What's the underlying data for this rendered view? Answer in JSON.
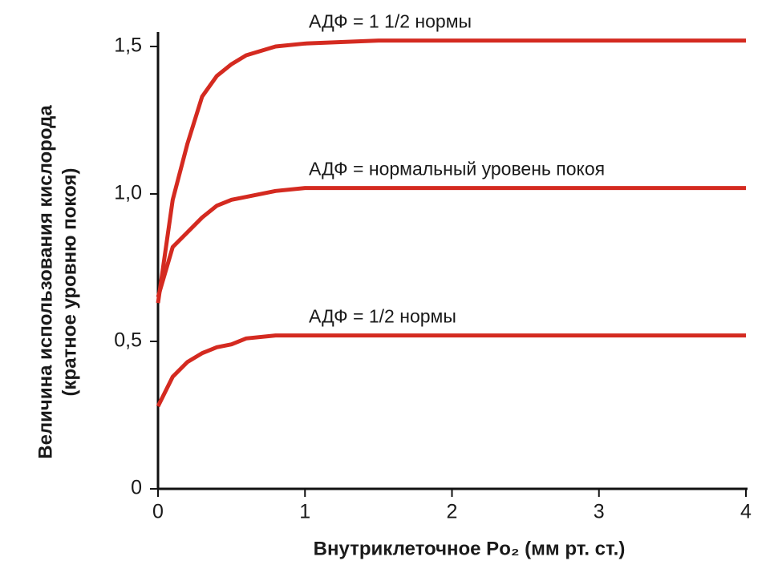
{
  "chart_data": {
    "type": "line",
    "x_label": "Внутриклеточное Po₂ (мм рт. ст.)",
    "y_label": [
      "Величина использования кислорода",
      "(кратное уровню покоя)"
    ],
    "x": [
      0,
      0.1,
      0.2,
      0.3,
      0.4,
      0.5,
      0.6,
      0.8,
      1.0,
      1.5,
      2,
      3,
      4
    ],
    "series": [
      {
        "name": "АДФ = 1 1/2 нормы",
        "color": "#d42a20",
        "values": [
          0.63,
          0.98,
          1.17,
          1.33,
          1.4,
          1.44,
          1.47,
          1.5,
          1.51,
          1.52,
          1.52,
          1.52,
          1.52
        ]
      },
      {
        "name": "АДФ = нормальный уровень покоя",
        "color": "#d42a20",
        "values": [
          0.65,
          0.82,
          0.87,
          0.92,
          0.96,
          0.98,
          0.99,
          1.01,
          1.02,
          1.02,
          1.02,
          1.02,
          1.02
        ]
      },
      {
        "name": "АДФ = 1/2 нормы",
        "color": "#d42a20",
        "values": [
          0.28,
          0.38,
          0.43,
          0.46,
          0.48,
          0.49,
          0.51,
          0.52,
          0.52,
          0.52,
          0.52,
          0.52,
          0.52
        ]
      }
    ],
    "xlim": [
      0,
      4
    ],
    "xticks": [
      0,
      1,
      2,
      3,
      4
    ],
    "ylim": [
      0,
      1.5
    ],
    "yticks": [
      0,
      {
        "value": 0.5,
        "label": "0,5"
      },
      {
        "value": 1.0,
        "label": "1,0"
      },
      {
        "value": 1.5,
        "label": "1,5"
      }
    ]
  }
}
